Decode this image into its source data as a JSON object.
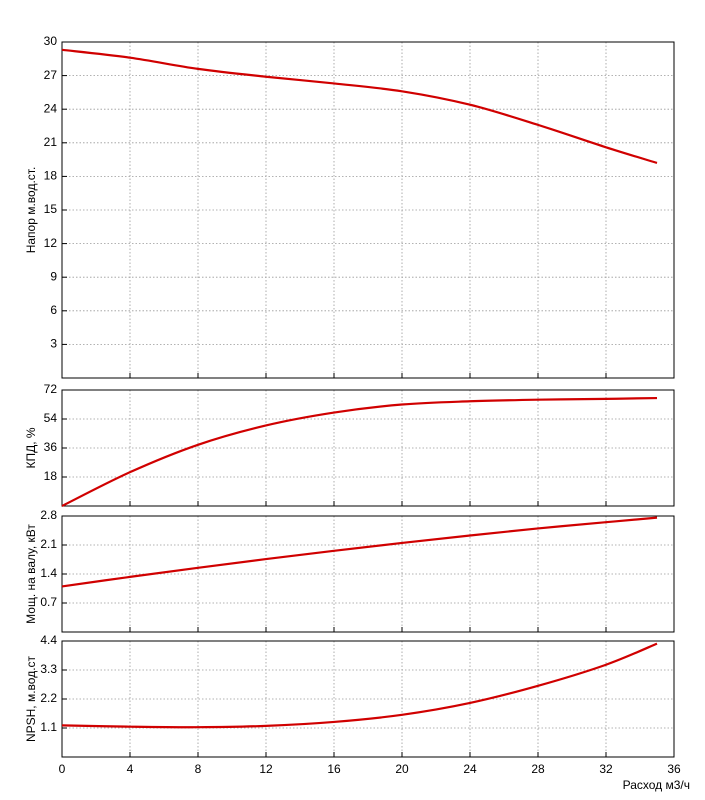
{
  "chart_data": [
    {
      "type": "line",
      "ylabel": "Напор м.вод.ст.",
      "x": [
        0,
        4,
        8,
        12,
        16,
        20,
        24,
        28,
        32,
        35
      ],
      "values": [
        29.3,
        28.6,
        27.6,
        26.9,
        26.3,
        25.6,
        24.4,
        22.6,
        20.6,
        19.2
      ],
      "color": "#d00000",
      "xlim": [
        0,
        36
      ],
      "xticks": [
        0,
        4,
        8,
        12,
        16,
        20,
        24,
        28,
        32,
        36
      ],
      "ylim": [
        0,
        30
      ],
      "yticks": [
        3,
        6,
        9,
        12,
        15,
        18,
        21,
        24,
        27,
        30
      ],
      "grid": true
    },
    {
      "type": "line",
      "ylabel": "КПД, %",
      "x": [
        0,
        4,
        8,
        12,
        16,
        20,
        24,
        28,
        32,
        35
      ],
      "values": [
        0,
        21,
        38,
        50,
        58,
        63,
        65,
        66,
        66.5,
        67
      ],
      "color": "#d00000",
      "xlim": [
        0,
        36
      ],
      "xticks": [
        0,
        4,
        8,
        12,
        16,
        20,
        24,
        28,
        32,
        36
      ],
      "ylim": [
        0,
        72
      ],
      "yticks": [
        18,
        36,
        54,
        72
      ],
      "grid": true
    },
    {
      "type": "line",
      "ylabel": "Мощ. на валу, кВт",
      "x": [
        0,
        4,
        8,
        12,
        16,
        20,
        24,
        28,
        32,
        35
      ],
      "values": [
        1.1,
        1.33,
        1.55,
        1.76,
        1.96,
        2.15,
        2.33,
        2.5,
        2.65,
        2.76
      ],
      "color": "#d00000",
      "xlim": [
        0,
        36
      ],
      "xticks": [
        0,
        4,
        8,
        12,
        16,
        20,
        24,
        28,
        32,
        36
      ],
      "ylim": [
        0,
        2.8
      ],
      "yticks": [
        0.7,
        1.4,
        2.1,
        2.8
      ],
      "grid": true
    },
    {
      "type": "line",
      "ylabel": "NPSH, м.вод.ст",
      "xlabel": "Расход м3/ч",
      "x": [
        0,
        4,
        8,
        12,
        16,
        20,
        24,
        28,
        32,
        35
      ],
      "values": [
        1.2,
        1.15,
        1.13,
        1.18,
        1.33,
        1.6,
        2.05,
        2.7,
        3.5,
        4.3
      ],
      "color": "#d00000",
      "xlim": [
        0,
        36
      ],
      "xticks": [
        0,
        4,
        8,
        12,
        16,
        20,
        24,
        28,
        32,
        36
      ],
      "ylim": [
        0,
        4.4
      ],
      "yticks": [
        1.1,
        2.2,
        3.3,
        4.4
      ],
      "grid": true
    }
  ]
}
